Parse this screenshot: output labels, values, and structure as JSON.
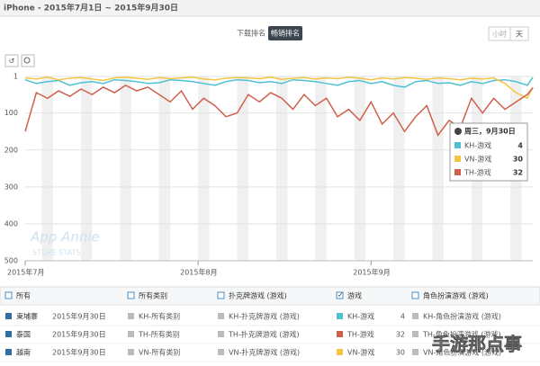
{
  "header": {
    "title": "iPhone - 2015年7月1日 ~ 2015年9月30日",
    "tabs": [
      "下载排名",
      "畅销排名"
    ],
    "granularity": [
      "小时",
      "天"
    ]
  },
  "chart_data": {
    "type": "line",
    "x": [
      0,
      2,
      4,
      6,
      8,
      10,
      12,
      14,
      16,
      18,
      20,
      22,
      24,
      26,
      28,
      30,
      32,
      34,
      36,
      38,
      40,
      42,
      44,
      46,
      48,
      50,
      52,
      54,
      56,
      58,
      60,
      62,
      64,
      66,
      68,
      70,
      72,
      74,
      76,
      78,
      80,
      82,
      84,
      86,
      88,
      90,
      91
    ],
    "xlim": [
      0,
      91
    ],
    "xticks": [
      {
        "value": 0,
        "label": "2015年7月"
      },
      {
        "value": 31,
        "label": "2015年8月"
      },
      {
        "value": 62,
        "label": "2015年9月"
      }
    ],
    "ylim": [
      500,
      1
    ],
    "yticks": [
      1,
      100,
      200,
      300,
      400,
      500
    ],
    "grid": true,
    "series": [
      {
        "name": "KH-游戏",
        "color": "#4fc1d2",
        "values": [
          10,
          20,
          15,
          12,
          25,
          18,
          15,
          20,
          10,
          12,
          15,
          20,
          18,
          10,
          12,
          15,
          20,
          25,
          15,
          10,
          12,
          18,
          15,
          20,
          10,
          12,
          15,
          20,
          25,
          15,
          12,
          20,
          15,
          25,
          30,
          15,
          12,
          20,
          18,
          25,
          15,
          20,
          12,
          10,
          15,
          25,
          4
        ]
      },
      {
        "name": "VN-游戏",
        "color": "#f4c542",
        "values": [
          5,
          8,
          3,
          10,
          6,
          4,
          8,
          12,
          5,
          3,
          6,
          9,
          4,
          7,
          5,
          3,
          8,
          10,
          6,
          4,
          5,
          7,
          3,
          9,
          6,
          4,
          8,
          5,
          7,
          3,
          6,
          10,
          5,
          8,
          4,
          6,
          9,
          5,
          7,
          10,
          6,
          8,
          5,
          20,
          45,
          60,
          30
        ]
      },
      {
        "name": "TH-游戏",
        "color": "#d0604c",
        "values": [
          150,
          45,
          60,
          40,
          55,
          35,
          50,
          30,
          45,
          25,
          40,
          30,
          50,
          70,
          40,
          90,
          60,
          80,
          110,
          100,
          50,
          70,
          45,
          60,
          90,
          50,
          80,
          60,
          110,
          90,
          120,
          70,
          130,
          100,
          150,
          110,
          80,
          160,
          120,
          140,
          60,
          100,
          60,
          90,
          70,
          50,
          32
        ]
      }
    ],
    "tooltip": "周三，9月30日",
    "watermark": [
      "App Annie",
      "STORE STATS"
    ]
  },
  "table": {
    "header": [
      "所有",
      "所有类别",
      "扑克牌游戏 (游戏)",
      "游戏",
      "角色扮演游戏 (游戏)"
    ],
    "rows": [
      {
        "country": "柬埔寨",
        "date": "2015年9月30日",
        "cells": [
          "KH-所有类别",
          "KH-扑克牌游戏 (游戏)",
          "KH-角色扮演游戏 (游戏)"
        ]
      },
      {
        "country": "泰国",
        "date": "2015年9月30日",
        "cells": [
          "TH-所有类别",
          "TH-扑克牌游戏 (游戏)",
          "TH-角色扮演游戏 (游戏)"
        ]
      },
      {
        "country": "越南",
        "date": "2015年9月30日",
        "cells": [
          "VN-所有类别",
          "VN-扑克牌游戏 (游戏)",
          "VN-角色扮演游戏 (游戏)"
        ]
      }
    ]
  },
  "footer_watermark": "手游那点事"
}
